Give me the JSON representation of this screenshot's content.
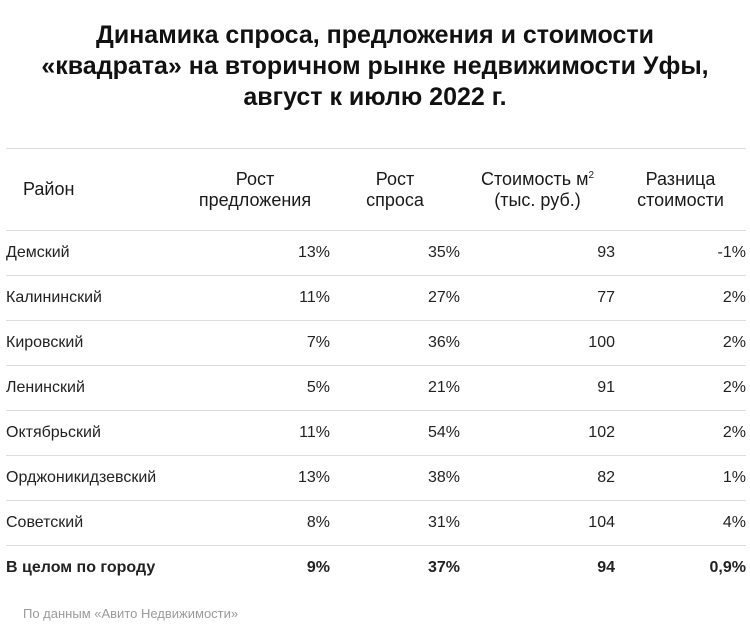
{
  "chart_data": {
    "type": "table",
    "title_lines": [
      "Динамика спроса, предложения и стоимости",
      "«квадрата» на вторичном рынке недвижимости Уфы,",
      "август к июлю 2022 г."
    ],
    "columns": {
      "district": "Район",
      "supply_growth": [
        "Рост",
        "предложения"
      ],
      "demand_growth": [
        "Рост",
        "спроса"
      ],
      "price_per_m2": [
        "Стоимость м",
        "2",
        "(тыс. руб.)"
      ],
      "price_change": [
        "Разница",
        "стоимости"
      ]
    },
    "rows": [
      {
        "district": "Демский",
        "supply_growth": "13%",
        "demand_growth": "35%",
        "price_per_m2": "93",
        "price_change": "-1%"
      },
      {
        "district": "Калининский",
        "supply_growth": "11%",
        "demand_growth": "27%",
        "price_per_m2": "77",
        "price_change": "2%"
      },
      {
        "district": "Кировский",
        "supply_growth": "7%",
        "demand_growth": "36%",
        "price_per_m2": "100",
        "price_change": "2%"
      },
      {
        "district": "Ленинский",
        "supply_growth": "5%",
        "demand_growth": "21%",
        "price_per_m2": "91",
        "price_change": "2%"
      },
      {
        "district": "Октябрьский",
        "supply_growth": "11%",
        "demand_growth": "54%",
        "price_per_m2": "102",
        "price_change": "2%"
      },
      {
        "district": "Орджоникидзевский",
        "supply_growth": "13%",
        "demand_growth": "38%",
        "price_per_m2": "82",
        "price_change": "1%"
      },
      {
        "district": "Советский",
        "supply_growth": "8%",
        "demand_growth": "31%",
        "price_per_m2": "104",
        "price_change": "4%"
      }
    ],
    "total": {
      "district": "В целом по городу",
      "supply_growth": "9%",
      "demand_growth": "37%",
      "price_per_m2": "94",
      "price_change": "0,9%"
    },
    "source": "По данным «Авито Недвижимости»"
  }
}
